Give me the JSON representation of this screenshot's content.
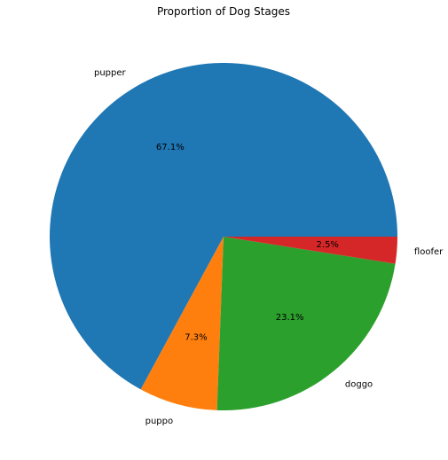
{
  "chart_data": {
    "type": "pie",
    "title": "Proportion of Dog Stages",
    "slices": [
      {
        "label": "pupper",
        "value": 67.1,
        "pct_label": "67.1%",
        "color": "#1f77b4"
      },
      {
        "label": "puppo",
        "value": 7.3,
        "pct_label": "7.3%",
        "color": "#ff7f0e"
      },
      {
        "label": "doggo",
        "value": 23.1,
        "pct_label": "23.1%",
        "color": "#2ca02c"
      },
      {
        "label": "floofer",
        "value": 2.5,
        "pct_label": "2.5%",
        "color": "#d62728"
      }
    ]
  }
}
